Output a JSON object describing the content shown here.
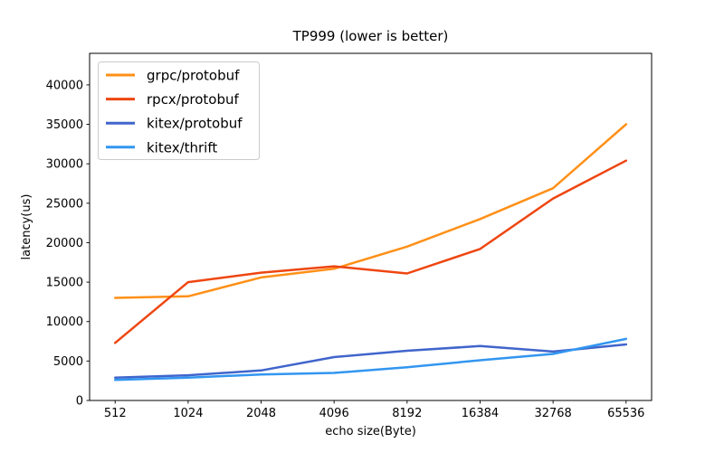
{
  "chart_data": {
    "type": "line",
    "title": "TP999 (lower is better)",
    "xlabel": "echo size(Byte)",
    "ylabel": "latency(us)",
    "categories": [
      "512",
      "1024",
      "2048",
      "4096",
      "8192",
      "16384",
      "32768",
      "65536"
    ],
    "series": [
      {
        "name": "grpc/protobuf",
        "color": "#ff9018",
        "values": [
          13000,
          13200,
          15600,
          16700,
          19500,
          23000,
          26900,
          35000
        ]
      },
      {
        "name": "rpcx/protobuf",
        "color": "#ee4611",
        "values": [
          7300,
          15000,
          16200,
          17000,
          16100,
          19200,
          25600,
          30400
        ]
      },
      {
        "name": "kitex/protobuf",
        "color": "#4065cc",
        "values": [
          2900,
          3200,
          3800,
          5500,
          6300,
          6900,
          6200,
          7100
        ]
      },
      {
        "name": "kitex/thrift",
        "color": "#3296f0",
        "values": [
          2600,
          2900,
          3300,
          3500,
          4200,
          5100,
          5900,
          7800
        ]
      }
    ],
    "yticks": [
      0,
      5000,
      10000,
      15000,
      20000,
      25000,
      30000,
      35000,
      40000
    ],
    "ylim": [
      0,
      44000
    ],
    "grid": false,
    "legend_position": "upper left",
    "axis_color": "#000000",
    "legend_border_color": "#cccccc",
    "background_color": "#ffffff"
  }
}
